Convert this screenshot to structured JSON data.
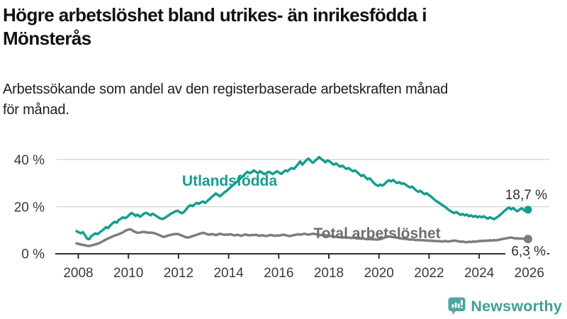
{
  "header": {
    "title_line1": "Högre arbetslöshet bland utrikes- än inrikesfödda i",
    "title_line2": "Mönsterås",
    "subtitle_line1": "Arbetssökande som andel av den registerbaserade arbetskraften månad",
    "subtitle_line2": "för månad."
  },
  "footer": {
    "brand": "Newsworthy",
    "logo_icon": "bar-chart-speech-bubble-icon",
    "brand_color": "#3f9e99",
    "icon_bg_color": "#4ba5a0"
  },
  "chart_data": {
    "type": "line",
    "unit": "%",
    "freq": "monthly",
    "start": "2008-01",
    "end": "2025-11",
    "grid": "horizontal-only",
    "ylim": [
      0,
      44
    ],
    "y_ticks": [
      {
        "label": "0 %",
        "value": 0
      },
      {
        "label": "20 %",
        "value": 20
      },
      {
        "label": "40 %",
        "value": 40
      }
    ],
    "x_ticks": [
      {
        "label": "2008",
        "year": 2008
      },
      {
        "label": "2010",
        "year": 2010
      },
      {
        "label": "2012",
        "year": 2012
      },
      {
        "label": "2014",
        "year": 2014
      },
      {
        "label": "2016",
        "year": 2016
      },
      {
        "label": "2018",
        "year": 2018
      },
      {
        "label": "2020",
        "year": 2020
      },
      {
        "label": "2022",
        "year": 2022
      },
      {
        "label": "2024",
        "year": 2024
      },
      {
        "label": "2026",
        "year": 2026
      }
    ],
    "series": [
      {
        "name": "Utlandsfödda",
        "color": "#149e8f",
        "end_label": "18,7 %",
        "end_value": 18.7,
        "values": [
          9.6,
          9.1,
          8.7,
          9.2,
          7.9,
          6.4,
          6.2,
          7.5,
          8.1,
          8.7,
          8.3,
          9.1,
          9.7,
          10.5,
          11.3,
          10.9,
          12.0,
          12.9,
          13.6,
          13.2,
          14.3,
          14.9,
          15.5,
          15.1,
          15.6,
          16.5,
          17.3,
          16.8,
          16.1,
          16.6,
          15.7,
          16.3,
          17.1,
          17.4,
          16.9,
          16.3,
          17.0,
          16.5,
          15.9,
          15.3,
          14.9,
          14.8,
          15.3,
          15.9,
          16.5,
          17.1,
          17.6,
          18.0,
          18.3,
          17.6,
          17.2,
          17.8,
          18.9,
          20.0,
          20.6,
          20.2,
          21.0,
          21.6,
          21.2,
          21.8,
          22.2,
          21.6,
          22.4,
          23.2,
          24.0,
          24.8,
          25.6,
          25.0,
          24.4,
          25.2,
          26.0,
          26.6,
          27.4,
          28.2,
          29.0,
          29.8,
          30.6,
          31.4,
          32.2,
          33.0,
          34.0,
          34.8,
          34.2,
          34.6,
          35.4,
          34.8,
          34.2,
          35.0,
          34.4,
          33.8,
          34.2,
          34.8,
          34.4,
          33.8,
          34.4,
          35.0,
          34.4,
          33.9,
          34.6,
          35.4,
          35.0,
          35.8,
          36.4,
          36.0,
          37.0,
          38.0,
          39.2,
          37.8,
          38.8,
          39.8,
          40.4,
          39.4,
          38.6,
          39.4,
          40.2,
          41.0,
          40.2,
          39.6,
          38.8,
          39.6,
          39.2,
          38.4,
          37.8,
          38.4,
          37.6,
          37.0,
          37.4,
          36.6,
          36.0,
          36.4,
          35.6,
          35.0,
          35.4,
          34.6,
          33.8,
          33.0,
          33.4,
          32.4,
          31.6,
          32.0,
          31.0,
          30.0,
          29.2,
          28.8,
          29.4,
          28.9,
          29.6,
          30.6,
          31.2,
          30.7,
          31.3,
          30.6,
          30.0,
          30.4,
          29.7,
          29.9,
          29.3,
          28.7,
          28.1,
          28.5,
          27.7,
          26.9,
          26.3,
          26.7,
          25.9,
          25.3,
          25.7,
          24.9,
          24.3,
          23.5,
          22.7,
          22.1,
          21.5,
          20.9,
          20.3,
          19.7,
          18.9,
          18.3,
          17.7,
          17.3,
          17.7,
          17.1,
          16.5,
          16.9,
          16.3,
          16.7,
          15.9,
          16.3,
          15.7,
          16.1,
          15.5,
          15.9,
          15.5,
          15.9,
          15.3,
          14.9,
          15.5,
          15.0,
          14.7,
          15.3,
          15.9,
          16.7,
          17.5,
          18.3,
          19.1,
          19.6,
          18.9,
          19.4,
          18.6,
          18.0,
          18.8,
          19.3,
          18.5,
          18.0,
          18.7
        ]
      },
      {
        "name": "Total arbetslöshet",
        "color": "#7d7d7d",
        "end_label": "6,3 %",
        "end_value": 6.3,
        "values": [
          4.4,
          4.2,
          4.0,
          3.8,
          3.6,
          3.4,
          3.3,
          3.5,
          3.8,
          4.0,
          4.3,
          4.6,
          5.1,
          5.6,
          6.1,
          6.5,
          6.9,
          7.3,
          7.7,
          8.0,
          8.3,
          8.7,
          9.1,
          9.7,
          10.1,
          10.4,
          10.2,
          9.6,
          9.2,
          8.9,
          9.0,
          9.2,
          9.3,
          9.1,
          8.9,
          9.0,
          8.9,
          8.7,
          8.4,
          8.0,
          7.6,
          7.2,
          7.3,
          7.6,
          7.9,
          8.1,
          8.3,
          8.4,
          8.4,
          8.1,
          7.7,
          7.3,
          7.0,
          6.9,
          7.2,
          7.5,
          7.8,
          8.1,
          8.4,
          8.7,
          8.9,
          8.6,
          8.3,
          8.1,
          8.4,
          8.2,
          7.9,
          8.2,
          8.5,
          8.3,
          8.0,
          8.2,
          8.1,
          8.3,
          8.0,
          7.8,
          8.1,
          7.9,
          7.6,
          7.9,
          8.2,
          8.0,
          7.8,
          8.0,
          7.9,
          8.1,
          7.8,
          7.6,
          7.9,
          7.7,
          7.5,
          7.8,
          8.0,
          7.8,
          7.6,
          7.8,
          7.7,
          7.9,
          8.1,
          7.9,
          7.7,
          7.5,
          7.7,
          7.9,
          8.1,
          8.3,
          8.1,
          8.3,
          8.5,
          8.3,
          8.1,
          8.3,
          8.5,
          8.4,
          8.2,
          8.0,
          7.9,
          8.1,
          7.9,
          7.7,
          7.6,
          7.4,
          7.2,
          7.3,
          7.1,
          7.0,
          6.9,
          7.0,
          6.8,
          6.9,
          6.7,
          6.8,
          6.7,
          6.5,
          6.6,
          6.4,
          6.5,
          6.3,
          6.2,
          6.3,
          6.1,
          6.2,
          6.0,
          6.1,
          6.2,
          6.5,
          6.9,
          7.3,
          7.4,
          7.3,
          7.1,
          7.0,
          6.8,
          6.6,
          6.5,
          6.4,
          6.3,
          6.2,
          6.0,
          6.1,
          5.9,
          5.8,
          5.9,
          5.7,
          5.8,
          5.6,
          5.7,
          5.5,
          5.6,
          5.4,
          5.5,
          5.3,
          5.4,
          5.2,
          5.3,
          5.4,
          5.2,
          5.3,
          5.5,
          5.6,
          5.5,
          5.3,
          5.1,
          5.2,
          5.0,
          4.9,
          5.1,
          5.0,
          5.2,
          5.1,
          5.3,
          5.4,
          5.5,
          5.4,
          5.6,
          5.5,
          5.7,
          5.6,
          5.8,
          5.7,
          5.9,
          6.1,
          6.3,
          6.5,
          6.6,
          6.8,
          6.9,
          6.7,
          6.5,
          6.6,
          6.4,
          6.5,
          6.3,
          6.2,
          6.3
        ]
      }
    ]
  }
}
